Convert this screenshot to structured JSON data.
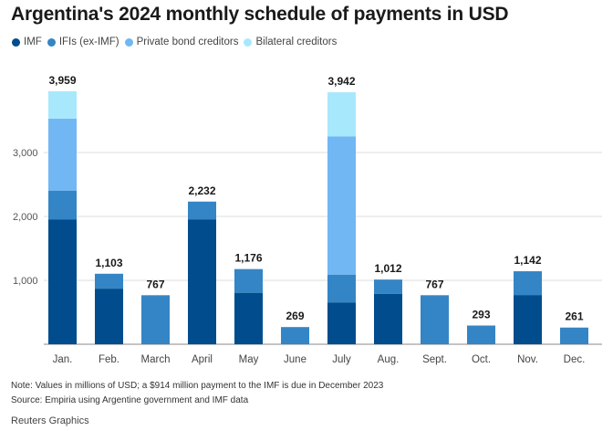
{
  "chart_data": {
    "type": "bar",
    "stacked": true,
    "title": "Argentina's 2024 monthly schedule of payments in USD",
    "categories": [
      "Jan.",
      "Feb.",
      "March",
      "April",
      "May",
      "June",
      "July",
      "Aug.",
      "Sept.",
      "Oct.",
      "Nov.",
      "Dec."
    ],
    "series": [
      {
        "name": "IMF",
        "color": "#004c8c",
        "values": [
          1950,
          870,
          0,
          1950,
          805,
          0,
          655,
          790,
          0,
          0,
          770,
          0
        ]
      },
      {
        "name": "IFIs (ex-IMF)",
        "color": "#3485c5",
        "values": [
          450,
          233,
          767,
          282,
          371,
          269,
          435,
          222,
          767,
          293,
          372,
          261
        ]
      },
      {
        "name": "Private bond creditors",
        "color": "#70b7f4",
        "values": [
          1130,
          0,
          0,
          0,
          0,
          0,
          2160,
          0,
          0,
          0,
          0,
          0
        ]
      },
      {
        "name": "Bilateral creditors",
        "color": "#a8e8fd",
        "values": [
          429,
          0,
          0,
          0,
          0,
          0,
          692,
          0,
          0,
          0,
          0,
          0
        ]
      }
    ],
    "totals": [
      "3,959",
      "1,103",
      "767",
      "2,232",
      "1,176",
      "269",
      "3,942",
      "1,012",
      "767",
      "293",
      "1,142",
      "261"
    ],
    "ylim": [
      0,
      4000
    ],
    "yticks": [
      0,
      1000,
      2000,
      3000
    ],
    "ytick_labels": [
      "",
      "1,000",
      "2,000",
      "3,000"
    ],
    "grid": true,
    "legend_position": "top-left"
  },
  "note": "Note: Values in millions of USD; a $914 million payment to the IMF is due in December 2023",
  "source": "Source: Empiria using Argentine government and IMF data",
  "credit": "Reuters Graphics"
}
